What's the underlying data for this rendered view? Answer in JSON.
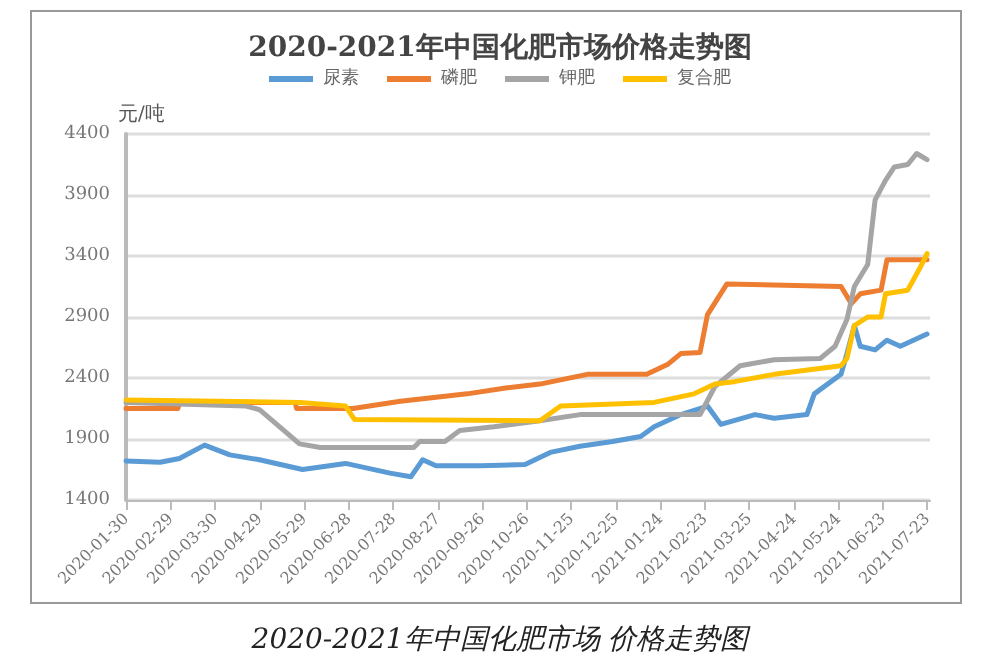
{
  "chart_data": {
    "type": "line",
    "title": "2020-2021年中国化肥市场价格走势图",
    "ylabel": "元/吨",
    "legend": "top",
    "grid": "y",
    "marker": "none",
    "line_style": "solid",
    "xlim": [
      "2020-01-30",
      "2021-07-25"
    ],
    "xticks": [
      "2020-01-30",
      "2020-02-29",
      "2020-03-30",
      "2020-04-29",
      "2020-05-29",
      "2020-06-28",
      "2020-07-28",
      "2020-08-27",
      "2020-09-26",
      "2020-10-26",
      "2020-11-25",
      "2020-12-25",
      "2021-01-24",
      "2021-02-23",
      "2021-03-25",
      "2021-04-24",
      "2021-05-24",
      "2021-06-23",
      "2021-07-23"
    ],
    "ylim": [
      1400,
      4400
    ],
    "yticks": [
      1400,
      1900,
      2400,
      2900,
      3400,
      3900,
      4400
    ],
    "annotations": [
      "2020-2021年中国化肥市场 价格走势图"
    ],
    "series": [
      {
        "name": "尿素",
        "color": "#5b9bd5",
        "x": [
          "2020-01-30",
          "2020-02-22",
          "2020-03-06",
          "2020-03-23",
          "2020-04-09",
          "2020-04-29",
          "2020-05-28",
          "2020-06-26",
          "2020-07-26",
          "2020-08-09",
          "2020-08-17",
          "2020-08-26",
          "2020-09-25",
          "2020-10-25",
          "2020-11-11",
          "2020-12-01",
          "2020-12-23",
          "2021-01-11",
          "2021-01-20",
          "2021-02-07",
          "2021-02-25",
          "2021-03-06",
          "2021-03-29",
          "2021-04-11",
          "2021-05-03",
          "2021-05-08",
          "2021-05-26",
          "2021-05-30",
          "2021-06-04",
          "2021-06-08",
          "2021-06-18",
          "2021-06-26",
          "2021-07-05",
          "2021-07-23"
        ],
        "values": [
          1720,
          1710,
          1740,
          1850,
          1770,
          1730,
          1650,
          1700,
          1620,
          1590,
          1730,
          1680,
          1680,
          1690,
          1790,
          1840,
          1880,
          1920,
          2000,
          2100,
          2170,
          2020,
          2100,
          2070,
          2100,
          2270,
          2430,
          2600,
          2830,
          2660,
          2630,
          2710,
          2660,
          2760
        ]
      },
      {
        "name": "磷肥",
        "color": "#ed7d31",
        "x": [
          "2020-01-30",
          "2020-03-05",
          "2020-03-06",
          "2020-05-23",
          "2020-05-24",
          "2020-07-01",
          "2020-08-02",
          "2020-09-16",
          "2020-10-13",
          "2020-11-04",
          "2020-12-06",
          "2021-01-15",
          "2021-01-29",
          "2021-02-07",
          "2021-02-20",
          "2021-02-25",
          "2021-03-10",
          "2021-05-26",
          "2021-06-02",
          "2021-06-08",
          "2021-06-22",
          "2021-06-26",
          "2021-07-23"
        ],
        "values": [
          2150,
          2150,
          2200,
          2200,
          2150,
          2150,
          2210,
          2270,
          2320,
          2350,
          2430,
          2430,
          2510,
          2600,
          2610,
          2920,
          3170,
          3150,
          3010,
          3090,
          3120,
          3370,
          3370
        ]
      },
      {
        "name": "钾肥",
        "color": "#a5a5a5",
        "x": [
          "2020-01-30",
          "2020-04-20",
          "2020-04-29",
          "2020-05-26",
          "2020-06-09",
          "2020-08-11",
          "2020-08-15",
          "2020-09-01",
          "2020-09-11",
          "2020-10-04",
          "2020-11-04",
          "2020-12-01",
          "2021-02-20",
          "2021-03-02",
          "2021-03-19",
          "2021-04-11",
          "2021-05-12",
          "2021-05-22",
          "2021-05-30",
          "2021-06-04",
          "2021-06-13",
          "2021-06-18",
          "2021-06-25",
          "2021-07-01",
          "2021-07-10",
          "2021-07-16",
          "2021-07-23"
        ],
        "values": [
          2200,
          2170,
          2140,
          1860,
          1830,
          1830,
          1880,
          1880,
          1970,
          2000,
          2050,
          2100,
          2100,
          2330,
          2500,
          2550,
          2560,
          2660,
          2880,
          3150,
          3330,
          3860,
          4020,
          4130,
          4150,
          4240,
          4190
        ]
      },
      {
        "name": "复合肥",
        "color": "#ffc000",
        "x": [
          "2020-01-30",
          "2020-05-26",
          "2020-06-26",
          "2020-07-02",
          "2020-11-04",
          "2020-11-18",
          "2021-01-20",
          "2021-02-16",
          "2021-03-02",
          "2021-03-15",
          "2021-04-11",
          "2021-05-26",
          "2021-05-30",
          "2021-06-04",
          "2021-06-13",
          "2021-06-22",
          "2021-06-25",
          "2021-07-10",
          "2021-07-19",
          "2021-07-23"
        ],
        "values": [
          2220,
          2200,
          2170,
          2060,
          2050,
          2170,
          2200,
          2270,
          2350,
          2370,
          2430,
          2500,
          2560,
          2830,
          2900,
          2900,
          3090,
          3120,
          3320,
          3420
        ]
      }
    ]
  }
}
